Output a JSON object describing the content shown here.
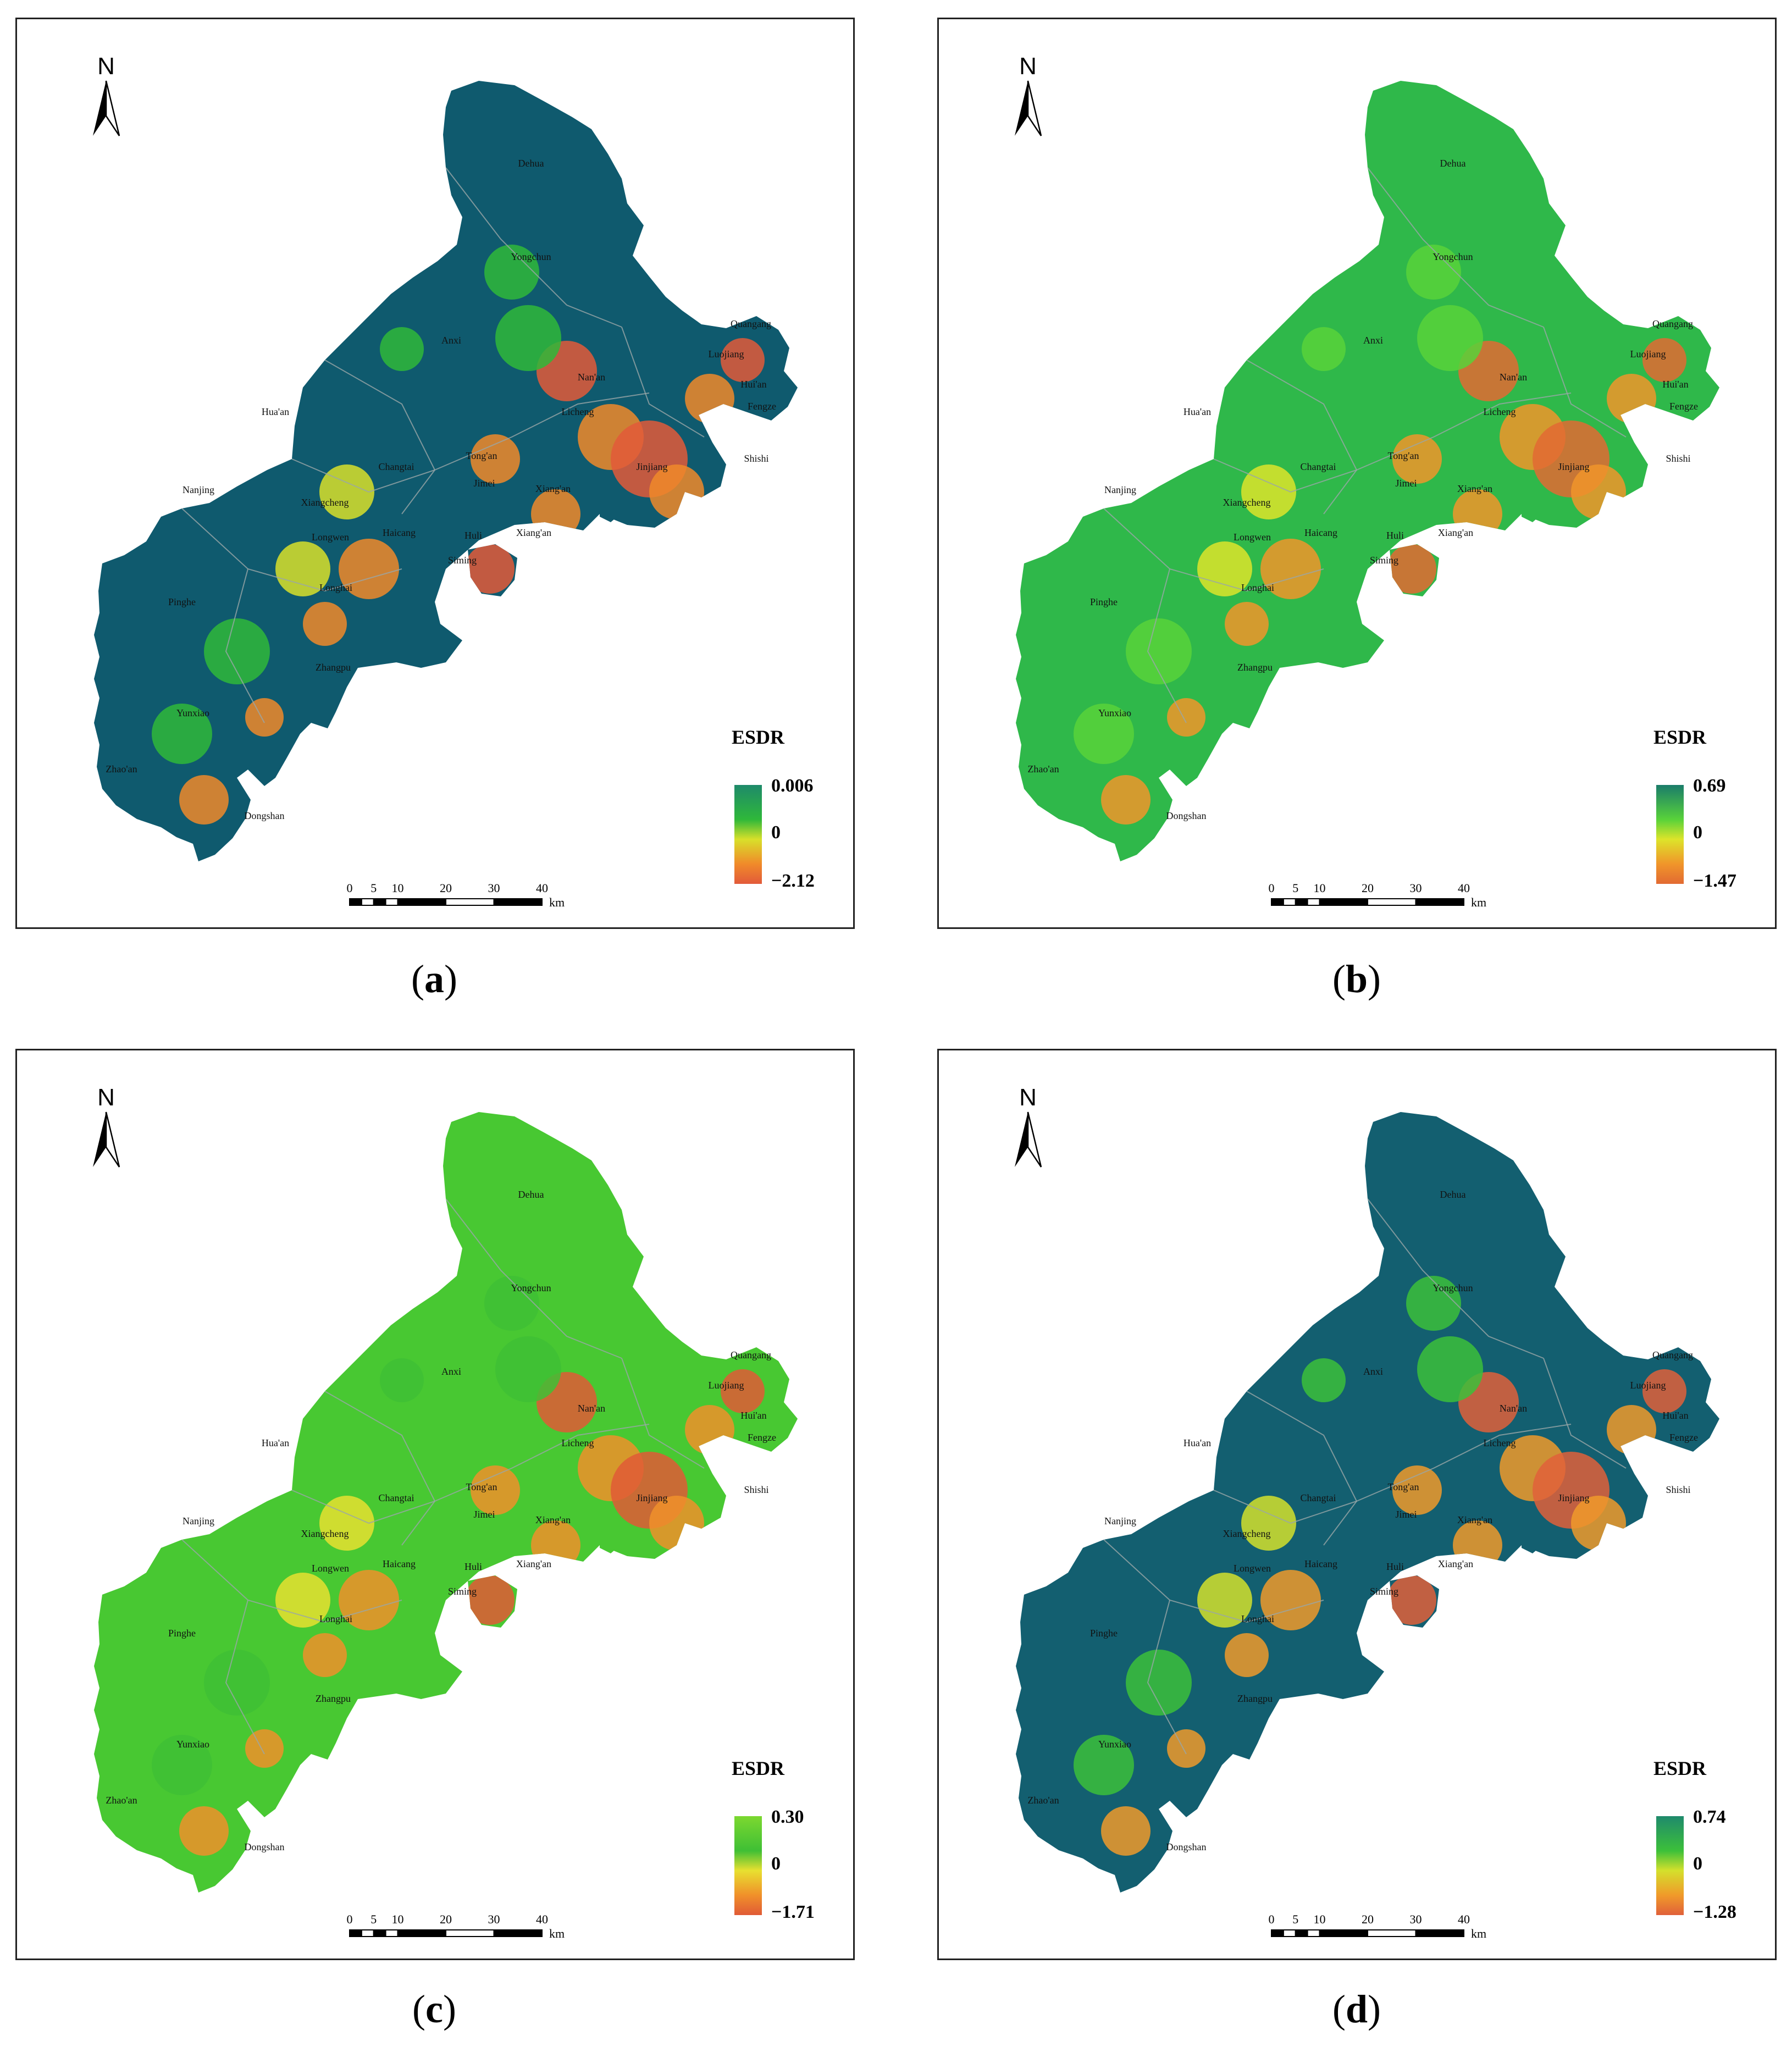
{
  "legend_title": "ESDR",
  "scalebar": {
    "ticks": [
      "0",
      "5",
      "10",
      "20",
      "30",
      "40"
    ],
    "unit": "km"
  },
  "north_label": "N",
  "places": [
    "Dehua",
    "Yongchun",
    "Anxi",
    "Quangang",
    "Luojiang",
    "Hui'an",
    "Nan'an",
    "Fengze",
    "Licheng",
    "Hua'an",
    "Shishi",
    "Tong'an",
    "Jinjiang",
    "Changtai",
    "Nanjing",
    "Jimei",
    "Xiang'an",
    "Xiangcheng",
    "Longwen",
    "Haicang",
    "Huli",
    "Xiang'an",
    "Siming",
    "Longhai",
    "Pinghe",
    "Zhangpu",
    "Yunxiao",
    "Zhao'an",
    "Dongshan"
  ],
  "panels": [
    {
      "id": "a",
      "caption": "a",
      "legend_max": "0.006",
      "legend_mid": "0",
      "legend_min": "−2.12",
      "colors": {
        "base": "#0f5a6e",
        "mid": "#1e8a6a",
        "green": "#2fb83a",
        "yellow": "#d8e02a",
        "orange": "#f08a2a",
        "red": "#e25a3a"
      }
    },
    {
      "id": "b",
      "caption": "b",
      "legend_max": "0.69",
      "legend_mid": "0",
      "legend_min": "−1.47",
      "colors": {
        "base": "#2fb84a",
        "mid": "#1a7c6a",
        "green": "#58d23a",
        "yellow": "#dde42a",
        "orange": "#f0952a",
        "red": "#e26a32"
      }
    },
    {
      "id": "c",
      "caption": "c",
      "legend_max": "0.30",
      "legend_mid": "0",
      "legend_min": "−1.71",
      "colors": {
        "base": "#48c832",
        "mid": "#7cd830",
        "green": "#3fbf35",
        "yellow": "#e8e030",
        "orange": "#f0902a",
        "red": "#e05a36"
      }
    },
    {
      "id": "d",
      "caption": "d",
      "legend_max": "0.74",
      "legend_mid": "0",
      "legend_min": "−1.28",
      "colors": {
        "base": "#135f70",
        "mid": "#1f8a6c",
        "green": "#3cc03a",
        "yellow": "#d4e02c",
        "orange": "#f09a2a",
        "red": "#e0603a"
      }
    }
  ]
}
